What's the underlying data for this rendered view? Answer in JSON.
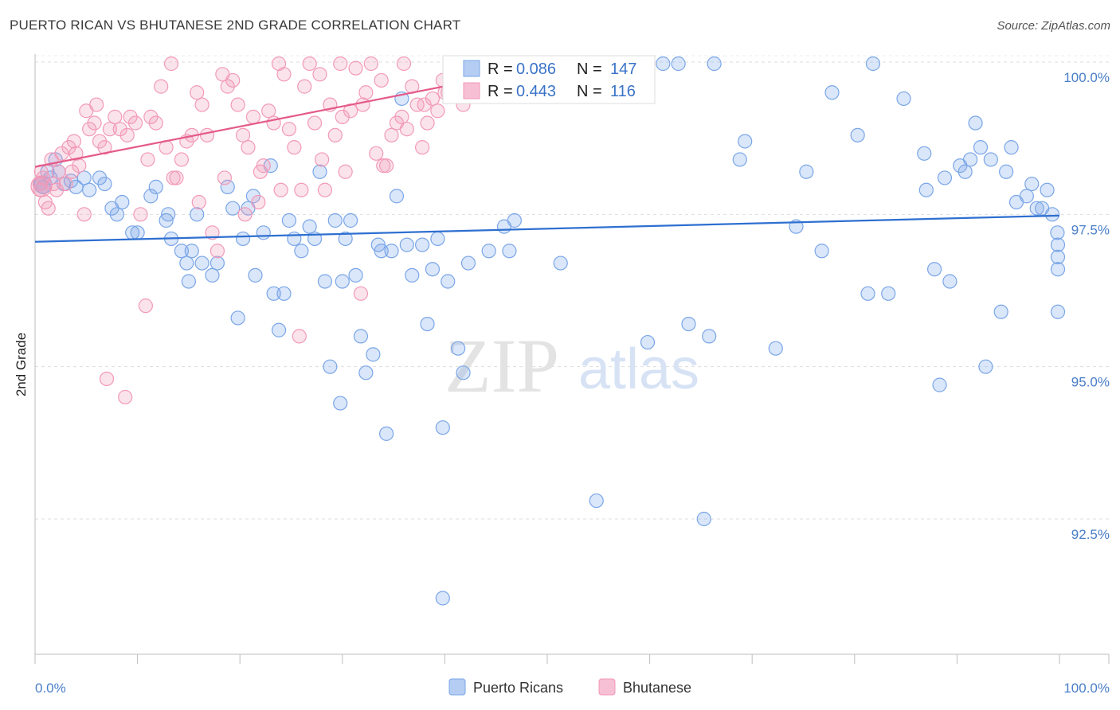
{
  "title": "PUERTO RICAN VS BHUTANESE 2ND GRADE CORRELATION CHART",
  "source": "Source: ZipAtlas.com",
  "watermark": {
    "zip": "ZIP",
    "atlas": "atlas"
  },
  "chart_data": {
    "type": "scatter",
    "xlabel": "",
    "ylabel": "2nd Grade",
    "xlim": [
      0,
      100
    ],
    "ylim": [
      90.4,
      100.4
    ],
    "x_tick_labels": [
      "0.0%",
      "100.0%"
    ],
    "y_ticks": [
      92.5,
      95.0,
      97.5,
      100.0
    ],
    "y_tick_labels": [
      "92.5%",
      "95.0%",
      "97.5%",
      "100.0%"
    ],
    "grid": true,
    "legend_position": "top-center",
    "stats": [
      {
        "r_label": "R =",
        "r": "0.086",
        "n_label": "N =",
        "n": "147"
      },
      {
        "r_label": "R =",
        "r": "0.443",
        "n_label": "N =",
        "n": "116"
      }
    ],
    "series": [
      {
        "name": "Puerto Ricans",
        "color": "#7aa6e8",
        "line_color": "#2e6fd0",
        "trend": {
          "x": [
            0,
            100
          ],
          "y": [
            97.05,
            97.48
          ]
        },
        "points": [
          [
            0.5,
            98.0
          ],
          [
            0.8,
            97.95
          ],
          [
            1.2,
            98.2
          ],
          [
            1.5,
            98.1
          ],
          [
            2.0,
            98.4
          ],
          [
            2.3,
            98.2
          ],
          [
            2.8,
            98.0
          ],
          [
            3.5,
            98.05
          ],
          [
            4.0,
            97.95
          ],
          [
            4.8,
            98.1
          ],
          [
            5.3,
            97.9
          ],
          [
            6.3,
            98.1
          ],
          [
            6.8,
            98.0
          ],
          [
            7.5,
            97.6
          ],
          [
            8.0,
            97.5
          ],
          [
            8.5,
            97.7
          ],
          [
            9.5,
            97.2
          ],
          [
            10.0,
            97.2
          ],
          [
            11.3,
            97.8
          ],
          [
            11.8,
            97.95
          ],
          [
            12.8,
            97.4
          ],
          [
            13.0,
            97.5
          ],
          [
            13.3,
            97.1
          ],
          [
            14.3,
            96.9
          ],
          [
            14.8,
            96.7
          ],
          [
            15.0,
            96.4
          ],
          [
            15.3,
            96.9
          ],
          [
            15.8,
            97.5
          ],
          [
            16.3,
            96.7
          ],
          [
            17.3,
            96.5
          ],
          [
            17.8,
            96.7
          ],
          [
            18.8,
            97.95
          ],
          [
            19.3,
            97.6
          ],
          [
            19.8,
            95.8
          ],
          [
            20.3,
            97.1
          ],
          [
            20.8,
            97.6
          ],
          [
            21.3,
            97.8
          ],
          [
            21.5,
            96.5
          ],
          [
            22.3,
            97.2
          ],
          [
            23.0,
            98.3
          ],
          [
            23.3,
            96.2
          ],
          [
            23.8,
            95.6
          ],
          [
            24.3,
            96.2
          ],
          [
            24.8,
            97.4
          ],
          [
            25.3,
            97.1
          ],
          [
            26.0,
            96.9
          ],
          [
            26.8,
            97.3
          ],
          [
            27.3,
            97.1
          ],
          [
            27.8,
            98.2
          ],
          [
            28.3,
            96.4
          ],
          [
            28.8,
            95.0
          ],
          [
            29.3,
            97.4
          ],
          [
            29.8,
            94.4
          ],
          [
            30.0,
            96.4
          ],
          [
            30.3,
            97.1
          ],
          [
            30.8,
            97.4
          ],
          [
            31.3,
            96.5
          ],
          [
            31.8,
            95.5
          ],
          [
            32.3,
            94.9
          ],
          [
            33.0,
            95.2
          ],
          [
            33.5,
            97.0
          ],
          [
            33.8,
            96.9
          ],
          [
            34.3,
            93.9
          ],
          [
            34.8,
            96.9
          ],
          [
            35.3,
            97.8
          ],
          [
            35.8,
            99.4
          ],
          [
            36.3,
            97.0
          ],
          [
            36.8,
            96.5
          ],
          [
            37.8,
            97.0
          ],
          [
            38.3,
            95.7
          ],
          [
            38.8,
            96.6
          ],
          [
            39.3,
            97.1
          ],
          [
            39.8,
            94.0
          ],
          [
            40.3,
            96.4
          ],
          [
            40.8,
            99.9
          ],
          [
            41.3,
            95.3
          ],
          [
            41.8,
            94.9
          ],
          [
            42.3,
            96.7
          ],
          [
            44.3,
            96.9
          ],
          [
            45.8,
            97.3
          ],
          [
            46.3,
            96.9
          ],
          [
            46.8,
            97.4
          ],
          [
            48.8,
            100.0
          ],
          [
            51.3,
            96.7
          ],
          [
            53.3,
            99.9
          ],
          [
            54.8,
            92.8
          ],
          [
            56.8,
            100.0
          ],
          [
            58.8,
            100.0
          ],
          [
            59.8,
            95.4
          ],
          [
            61.3,
            100.0
          ],
          [
            62.8,
            100.0
          ],
          [
            63.8,
            95.7
          ],
          [
            65.3,
            92.5
          ],
          [
            65.8,
            95.5
          ],
          [
            66.3,
            100.0
          ],
          [
            68.8,
            98.4
          ],
          [
            69.3,
            98.7
          ],
          [
            72.3,
            95.3
          ],
          [
            74.3,
            97.3
          ],
          [
            75.3,
            98.2
          ],
          [
            76.8,
            96.9
          ],
          [
            77.8,
            99.5
          ],
          [
            80.3,
            98.8
          ],
          [
            81.3,
            96.2
          ],
          [
            81.8,
            100.0
          ],
          [
            83.3,
            96.2
          ],
          [
            84.8,
            99.4
          ],
          [
            86.8,
            98.5
          ],
          [
            87.0,
            97.9
          ],
          [
            87.8,
            96.6
          ],
          [
            88.3,
            94.7
          ],
          [
            88.8,
            98.1
          ],
          [
            89.3,
            96.4
          ],
          [
            90.3,
            98.3
          ],
          [
            90.8,
            98.2
          ],
          [
            91.3,
            98.4
          ],
          [
            91.8,
            99.0
          ],
          [
            92.3,
            98.6
          ],
          [
            92.8,
            95.0
          ],
          [
            93.3,
            98.4
          ],
          [
            94.3,
            95.9
          ],
          [
            94.8,
            98.2
          ],
          [
            95.3,
            98.6
          ],
          [
            95.8,
            97.7
          ],
          [
            96.8,
            97.8
          ],
          [
            97.3,
            98.0
          ],
          [
            97.8,
            97.6
          ],
          [
            98.3,
            97.6
          ],
          [
            98.8,
            97.9
          ],
          [
            99.3,
            97.5
          ],
          [
            99.8,
            97.2
          ],
          [
            100.3,
            97.0
          ],
          [
            100.8,
            96.8
          ],
          [
            101.3,
            96.6
          ],
          [
            101.8,
            95.9
          ],
          [
            39.8,
            91.2
          ]
        ]
      },
      {
        "name": "Bhutanese",
        "color": "#f29ab8",
        "line_color": "#e45a8a",
        "trend": {
          "x": [
            0,
            52
          ],
          "y": [
            98.28,
            100.0
          ]
        },
        "points": [
          [
            0.3,
            98.0
          ],
          [
            0.5,
            97.9
          ],
          [
            0.8,
            98.1
          ],
          [
            1.0,
            97.7
          ],
          [
            1.3,
            97.6
          ],
          [
            1.8,
            98.0
          ],
          [
            2.3,
            98.2
          ],
          [
            2.6,
            98.5
          ],
          [
            3.0,
            98.0
          ],
          [
            3.3,
            98.6
          ],
          [
            3.8,
            98.7
          ],
          [
            4.0,
            98.5
          ],
          [
            4.3,
            98.3
          ],
          [
            4.8,
            97.5
          ],
          [
            5.0,
            99.2
          ],
          [
            5.3,
            98.9
          ],
          [
            5.8,
            99.0
          ],
          [
            6.3,
            98.7
          ],
          [
            6.8,
            98.6
          ],
          [
            7.0,
            94.8
          ],
          [
            7.3,
            98.9
          ],
          [
            7.8,
            99.1
          ],
          [
            8.3,
            98.9
          ],
          [
            8.8,
            94.5
          ],
          [
            9.3,
            99.1
          ],
          [
            9.8,
            99.0
          ],
          [
            10.3,
            97.5
          ],
          [
            10.8,
            96.0
          ],
          [
            11.3,
            99.1
          ],
          [
            11.8,
            99.0
          ],
          [
            12.3,
            99.6
          ],
          [
            12.8,
            98.6
          ],
          [
            13.3,
            100.0
          ],
          [
            13.8,
            98.1
          ],
          [
            14.3,
            98.4
          ],
          [
            14.8,
            98.7
          ],
          [
            15.3,
            98.8
          ],
          [
            15.8,
            99.5
          ],
          [
            16.3,
            99.3
          ],
          [
            16.8,
            98.8
          ],
          [
            17.3,
            97.2
          ],
          [
            17.8,
            96.9
          ],
          [
            18.3,
            99.8
          ],
          [
            18.8,
            99.6
          ],
          [
            19.3,
            99.7
          ],
          [
            19.8,
            99.3
          ],
          [
            20.3,
            98.8
          ],
          [
            20.8,
            98.6
          ],
          [
            21.3,
            99.1
          ],
          [
            21.8,
            97.7
          ],
          [
            22.3,
            98.3
          ],
          [
            22.8,
            99.2
          ],
          [
            23.3,
            99.0
          ],
          [
            23.8,
            100.0
          ],
          [
            24.3,
            99.8
          ],
          [
            24.8,
            98.9
          ],
          [
            25.3,
            98.6
          ],
          [
            25.8,
            95.5
          ],
          [
            26.3,
            99.6
          ],
          [
            26.8,
            100.0
          ],
          [
            27.3,
            99.0
          ],
          [
            27.8,
            99.8
          ],
          [
            28.3,
            97.9
          ],
          [
            28.8,
            99.3
          ],
          [
            29.3,
            98.8
          ],
          [
            29.8,
            100.0
          ],
          [
            30.3,
            98.2
          ],
          [
            30.8,
            99.2
          ],
          [
            31.3,
            99.9
          ],
          [
            31.8,
            96.2
          ],
          [
            32.3,
            99.5
          ],
          [
            32.8,
            100.0
          ],
          [
            33.3,
            98.5
          ],
          [
            33.8,
            99.7
          ],
          [
            34.3,
            98.3
          ],
          [
            34.8,
            98.8
          ],
          [
            35.3,
            99.0
          ],
          [
            35.8,
            99.1
          ],
          [
            36.3,
            98.9
          ],
          [
            36.8,
            99.6
          ],
          [
            37.3,
            99.3
          ],
          [
            37.8,
            98.6
          ],
          [
            38.3,
            99.0
          ],
          [
            38.8,
            99.4
          ],
          [
            39.3,
            99.2
          ],
          [
            39.8,
            99.7
          ],
          [
            40.3,
            99.5
          ],
          [
            40.8,
            99.9
          ],
          [
            41.3,
            99.8
          ],
          [
            41.8,
            99.3
          ],
          [
            42.3,
            99.6
          ],
          [
            42.8,
            99.7
          ],
          [
            0.6,
            98.2
          ],
          [
            1.6,
            98.4
          ],
          [
            2.1,
            97.9
          ],
          [
            3.6,
            98.2
          ],
          [
            6.0,
            99.3
          ],
          [
            9.0,
            98.8
          ],
          [
            11.0,
            98.4
          ],
          [
            13.5,
            98.1
          ],
          [
            16.0,
            97.7
          ],
          [
            18.5,
            98.1
          ],
          [
            20.5,
            97.5
          ],
          [
            22.0,
            98.2
          ],
          [
            24.0,
            97.9
          ],
          [
            26.0,
            97.9
          ],
          [
            28.0,
            98.4
          ],
          [
            30.0,
            99.1
          ],
          [
            32.0,
            99.3
          ],
          [
            34.0,
            98.3
          ],
          [
            36.0,
            100.0
          ],
          [
            38.0,
            99.3
          ],
          [
            40.0,
            99.5
          ],
          [
            42.0,
            99.7
          ],
          [
            44.0,
            99.9
          ],
          [
            46.0,
            100.0
          ]
        ]
      }
    ]
  }
}
